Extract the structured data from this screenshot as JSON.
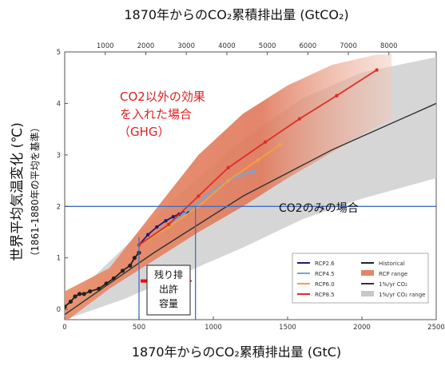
{
  "chart_data": {
    "type": "line",
    "title_top": "1870年からのCO₂累積排出量 (GtCO₂)",
    "xlabel": "1870年からのCO₂累積排出量 (GtC)",
    "ylabel": "世界平均気温変化 (℃)",
    "ylabel_sub": "（1861-1880年の平均を基準）",
    "xlim": [
      0,
      2500
    ],
    "ylim": [
      -0.2,
      5
    ],
    "x_ticks": [
      "0",
      "500",
      "1000",
      "1500",
      "2000",
      "2500"
    ],
    "y_ticks": [
      "0",
      "1",
      "2",
      "3",
      "4",
      "5"
    ],
    "top_ticks": [
      "1000",
      "2000",
      "3000",
      "4000",
      "5000",
      "6000",
      "7000",
      "8000"
    ],
    "threshold_y": 2,
    "budget_range_x": [
      500,
      880
    ],
    "series": [
      {
        "name": "Historical",
        "color": "#222222",
        "x": [
          0,
          40,
          70,
          100,
          130,
          170,
          230,
          280,
          330,
          390,
          440,
          470,
          500
        ],
        "y": [
          0.05,
          0.15,
          0.25,
          0.3,
          0.3,
          0.35,
          0.4,
          0.5,
          0.6,
          0.75,
          0.85,
          1.0,
          1.1
        ]
      },
      {
        "name": "RCP2.6",
        "color": "#1c1c7a",
        "x": [
          500,
          560,
          620,
          680,
          730,
          770,
          800,
          830
        ],
        "y": [
          1.25,
          1.45,
          1.6,
          1.72,
          1.8,
          1.85,
          1.87,
          1.88
        ]
      },
      {
        "name": "RCP4.5",
        "color": "#6fa8dc",
        "x": [
          500,
          650,
          800,
          950,
          1100,
          1200,
          1270
        ],
        "y": [
          1.25,
          1.55,
          1.85,
          2.2,
          2.5,
          2.62,
          2.68
        ]
      },
      {
        "name": "RCP6.0",
        "color": "#f6a03c",
        "x": [
          500,
          700,
          900,
          1100,
          1300,
          1450
        ],
        "y": [
          1.25,
          1.6,
          2.0,
          2.5,
          2.9,
          3.2
        ]
      },
      {
        "name": "RCP8.5",
        "color": "#e02e24",
        "x": [
          500,
          700,
          900,
          1100,
          1350,
          1580,
          1830,
          2100
        ],
        "y": [
          1.25,
          1.65,
          2.2,
          2.75,
          3.25,
          3.7,
          4.15,
          4.65
        ]
      },
      {
        "name": "1%/yr CO₂",
        "color": "#333333",
        "x": [
          0,
          600,
          1200,
          1800,
          2500
        ],
        "y": [
          -0.1,
          1.1,
          2.2,
          3.1,
          4.0
        ]
      }
    ],
    "rcp_range_upper": {
      "x": [
        0,
        300,
        600,
        900,
        1200,
        1500,
        1800,
        2100,
        2200
      ],
      "y": [
        0.35,
        0.8,
        1.9,
        3.0,
        3.8,
        4.35,
        4.75,
        4.95,
        4.95
      ]
    },
    "rcp_range_lower": {
      "x": [
        0,
        300,
        600,
        900,
        1200,
        1500,
        1800,
        2100,
        2200
      ],
      "y": [
        -0.25,
        0.4,
        0.95,
        1.5,
        2.0,
        2.55,
        3.05,
        3.55,
        3.7
      ]
    },
    "co2_only_upper": {
      "x": [
        0,
        400,
        800,
        1200,
        1600,
        2000,
        2500
      ],
      "y": [
        0.1,
        1.2,
        2.3,
        3.3,
        4.1,
        4.6,
        4.9
      ]
    },
    "co2_only_lower": {
      "x": [
        0,
        400,
        800,
        1200,
        1600,
        2000,
        2500
      ],
      "y": [
        -0.2,
        0.2,
        0.7,
        1.2,
        1.75,
        2.15,
        2.55
      ]
    },
    "legend": [
      {
        "label": "RCP2.6",
        "color": "#1c1c7a",
        "kind": "line"
      },
      {
        "label": "RCP4.5",
        "color": "#6fa8dc",
        "kind": "line"
      },
      {
        "label": "RCP6.0",
        "color": "#f6a03c",
        "kind": "line"
      },
      {
        "label": "RCP8.5",
        "color": "#e02e24",
        "kind": "line"
      },
      {
        "label": "Historical",
        "color": "#222222",
        "kind": "line"
      },
      {
        "label": "RCP range",
        "color": "#e4846a",
        "kind": "patch"
      },
      {
        "label": "1%/yr CO₂",
        "color": "#333333",
        "kind": "line"
      },
      {
        "label": "1%/yr CO₂ range",
        "color": "#c8c8c8",
        "kind": "patch"
      }
    ],
    "annotations": {
      "ghg_line1": "CO2以外の効果",
      "ghg_line2": "を入れた場合",
      "ghg_line3": "（GHG）",
      "co2_only": "CO2のみの場合",
      "budget_line1": "残り排",
      "budget_line2": "出許",
      "budget_line3": "容量"
    },
    "colors": {
      "threshold": "#3f6fc4",
      "arrow": "#ff0000",
      "ghg_text": "#e02020"
    }
  }
}
